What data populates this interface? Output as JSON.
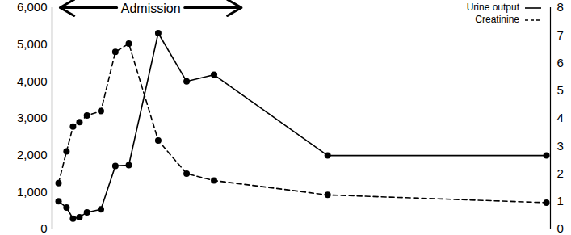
{
  "chart_data": {
    "type": "line",
    "annotations": [
      {
        "text": "Admission",
        "x": [
          1.6,
          38
        ]
      }
    ],
    "x": [
      1.3,
      2.9,
      4.2,
      5.5,
      7.0,
      9.8,
      12.7,
      15.4,
      21.3,
      27.0,
      32.5,
      55.3,
      99.2
    ],
    "xlim": [
      0,
      100
    ],
    "ylim": [
      0,
      6000
    ],
    "yticks": [
      0,
      {
        "value": 1000,
        "label": "1,000"
      },
      {
        "value": 2000,
        "label": "2,000"
      },
      {
        "value": 3000,
        "label": "3,000"
      },
      {
        "value": 4000,
        "label": "4,000"
      },
      {
        "value": 5000,
        "label": "5,000"
      },
      {
        "value": 6000,
        "label": "6,000"
      }
    ],
    "y2lim": [
      0,
      8
    ],
    "y2ticks": [
      0,
      1,
      2,
      3,
      4,
      5,
      6,
      7,
      8
    ],
    "tick_labels": "y",
    "legend": "top-right",
    "series": [
      {
        "name": "Urine output",
        "color": "#000000",
        "line_style": "solid",
        "marker": "circle",
        "values": [
          750,
          580,
          280,
          320,
          450,
          530,
          1710,
          1730,
          5310,
          4000,
          4180,
          1990,
          1990
        ]
      },
      {
        "name": "Creatinine",
        "color": "#000000",
        "line_style": "dashed",
        "marker": "circle",
        "axis": "y2",
        "values": [
          1.66,
          2.8,
          3.7,
          3.86,
          4.1,
          4.26,
          6.4,
          6.7,
          3.2,
          2.0,
          1.75,
          1.23,
          0.95
        ]
      }
    ]
  }
}
